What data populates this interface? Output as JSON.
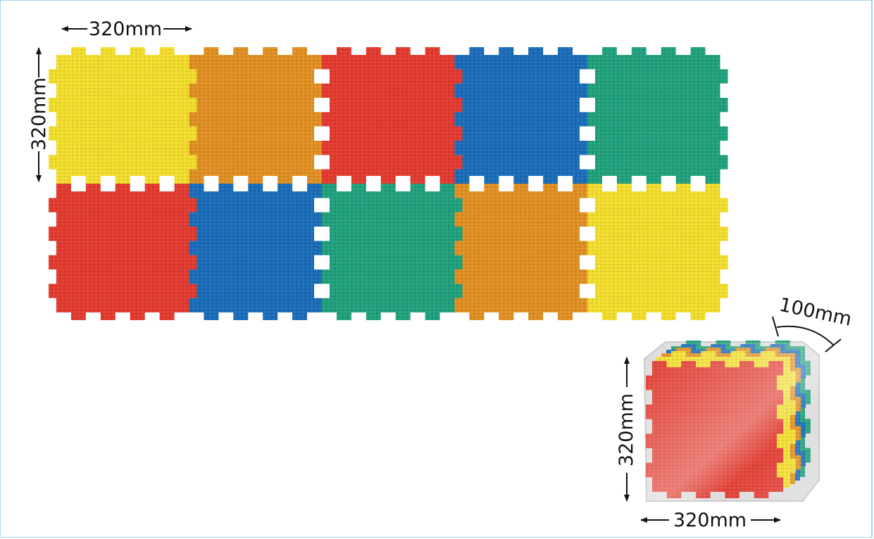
{
  "dimensions": {
    "top_width": "320mm",
    "left_height": "320mm",
    "stack_height": "320mm",
    "stack_width": "320mm",
    "stack_thickness": "100mm"
  },
  "grid": {
    "rows": 2,
    "columns": 5,
    "tile_colors": [
      [
        "yellow",
        "orange",
        "red",
        "blue",
        "green"
      ],
      [
        "red",
        "blue",
        "green",
        "orange",
        "yellow"
      ]
    ]
  },
  "stack": {
    "front_tile_color": "red",
    "layer_colors": [
      "yellow",
      "orange",
      "blue",
      "green"
    ]
  },
  "colors": {
    "yellow": "#f2dd2c",
    "orange": "#e08f22",
    "red": "#e23a2f",
    "blue": "#1a6cb9",
    "green": "#20a07c"
  }
}
